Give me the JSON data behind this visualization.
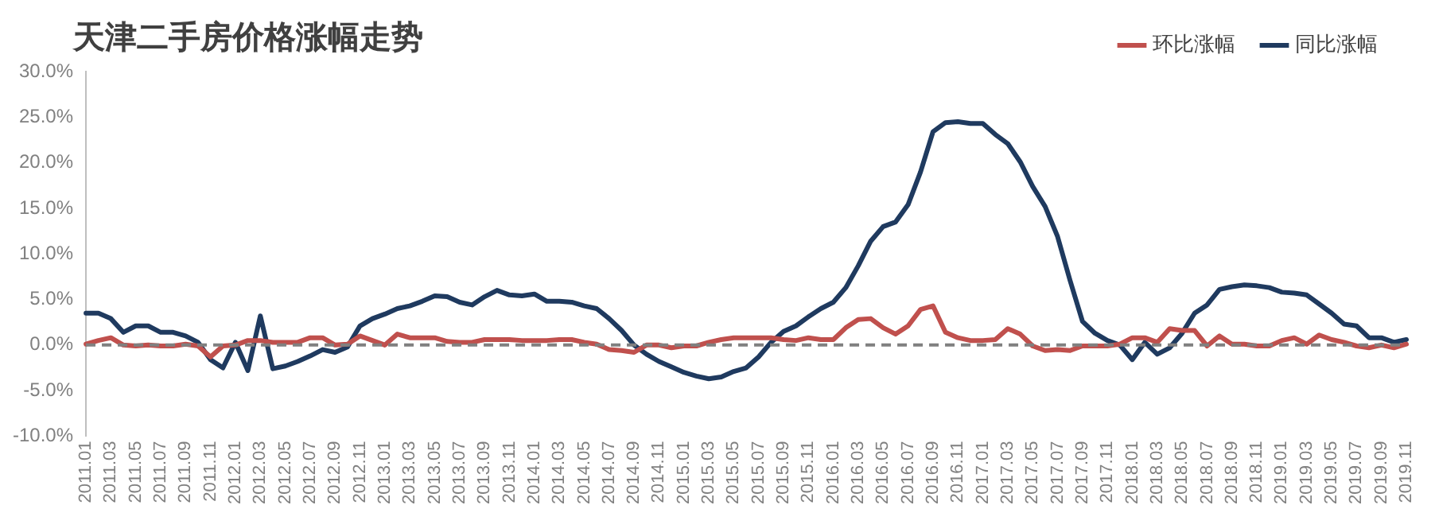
{
  "chart_data": {
    "type": "line",
    "title": "天津二手房价格涨幅走势",
    "categories": [
      "2011.01",
      null,
      "2011.03",
      null,
      "2011.05",
      null,
      "2011.07",
      null,
      "2011.09",
      null,
      "2011.11",
      null,
      "2012.01",
      null,
      "2012.03",
      null,
      "2012.05",
      null,
      "2012.07",
      null,
      "2012.09",
      null,
      "2012.11",
      null,
      "2013.01",
      null,
      "2013.03",
      null,
      "2013.05",
      null,
      "2013.07",
      null,
      "2013.09",
      null,
      "2013.11",
      null,
      "2014.01",
      null,
      "2014.03",
      null,
      "2014.05",
      null,
      "2014.07",
      null,
      "2014.09",
      null,
      "2014.11",
      null,
      "2015.01",
      null,
      "2015.03",
      null,
      "2015.05",
      null,
      "2015.07",
      null,
      "2015.09",
      null,
      "2015.11",
      null,
      "2016.01",
      null,
      "2016.03",
      null,
      "2016.05",
      null,
      "2016.07",
      null,
      "2016.09",
      null,
      "2016.11",
      null,
      "2017.01",
      null,
      "2017.03",
      null,
      "2017.05",
      null,
      "2017.07",
      null,
      "2017.09",
      null,
      "2017.11",
      null,
      "2018.01",
      null,
      "2018.03",
      null,
      "2018.05",
      null,
      "2018.07",
      null,
      "2018.09",
      null,
      "2018.11",
      null,
      "2019.01",
      null,
      "2019.03",
      null,
      "2019.05",
      null,
      "2019.07",
      null,
      "2019.09",
      null,
      "2019.11"
    ],
    "series": [
      {
        "name": "环比涨幅",
        "color": "#c0504d",
        "values": [
          0.1,
          0.5,
          0.8,
          0,
          -0.1,
          0,
          -0.1,
          -0.1,
          0.1,
          -0.1,
          -1.3,
          -0.1,
          0,
          0.5,
          0.5,
          0.3,
          0.3,
          0.3,
          0.8,
          0.8,
          0,
          0.1,
          1.0,
          0.5,
          0,
          1.2,
          0.8,
          0.8,
          0.8,
          0.4,
          0.3,
          0.3,
          0.6,
          0.6,
          0.6,
          0.5,
          0.5,
          0.5,
          0.6,
          0.6,
          0.3,
          0.1,
          -0.5,
          -0.6,
          -0.8,
          0,
          0,
          -0.3,
          -0.1,
          -0.1,
          0.3,
          0.6,
          0.8,
          0.8,
          0.8,
          0.8,
          0.6,
          0.5,
          0.8,
          0.6,
          0.6,
          1.9,
          2.8,
          2.9,
          1.9,
          1.2,
          2.1,
          3.9,
          4.3,
          1.4,
          0.8,
          0.5,
          0.5,
          0.6,
          1.8,
          1.2,
          -0.1,
          -0.6,
          -0.5,
          -0.6,
          -0.1,
          -0.1,
          -0.1,
          0.1,
          0.8,
          0.8,
          0.3,
          1.8,
          1.6,
          1.6,
          -0.1,
          1.0,
          0.1,
          0.1,
          -0.1,
          -0.1,
          0.5,
          0.8,
          0.1,
          1.1,
          0.6,
          0.3,
          -0.1,
          -0.3,
          0,
          -0.3,
          0.1
        ]
      },
      {
        "name": "同比涨幅",
        "color": "#1f3a5f",
        "values": [
          3.5,
          3.5,
          2.9,
          1.4,
          2.1,
          2.1,
          1.4,
          1.4,
          1.0,
          0.3,
          -1.6,
          -2.5,
          0.3,
          -2.8,
          3.2,
          -2.6,
          -2.3,
          -1.8,
          -1.2,
          -0.5,
          -0.8,
          -0.2,
          2.1,
          2.9,
          3.4,
          4.0,
          4.3,
          4.8,
          5.4,
          5.3,
          4.7,
          4.4,
          5.3,
          6.0,
          5.5,
          5.4,
          5.6,
          4.8,
          4.8,
          4.7,
          4.3,
          4.0,
          2.9,
          1.6,
          0,
          -1.0,
          -1.8,
          -2.4,
          -3.0,
          -3.4,
          -3.7,
          -3.5,
          -2.9,
          -2.5,
          -1.3,
          0.3,
          1.5,
          2.1,
          3.1,
          4.0,
          4.7,
          6.3,
          8.7,
          11.4,
          13.0,
          13.5,
          15.4,
          19.0,
          23.4,
          24.4,
          24.5,
          24.3,
          24.3,
          23.1,
          22.1,
          20.1,
          17.4,
          15.2,
          11.9,
          7.1,
          2.6,
          1.3,
          0.5,
          0,
          -1.6,
          0.3,
          -1.0,
          -0.3,
          1.3,
          3.5,
          4.4,
          6.1,
          6.4,
          6.6,
          6.5,
          6.3,
          5.8,
          5.7,
          5.5,
          4.5,
          3.5,
          2.3,
          2.1,
          0.8,
          0.8,
          0.3,
          0.6
        ]
      }
    ],
    "ylim": [
      -10,
      30
    ],
    "yticks": [
      {
        "value": -10,
        "label": "-10.0%"
      },
      {
        "value": -5,
        "label": "-5.0%"
      },
      {
        "value": 0,
        "label": "0.0%"
      },
      {
        "value": 5,
        "label": "5.0%"
      },
      {
        "value": 10,
        "label": "10.0%"
      },
      {
        "value": 15,
        "label": "15.0%"
      },
      {
        "value": 20,
        "label": "20.0%"
      },
      {
        "value": 25,
        "label": "25.0%"
      },
      {
        "value": 30,
        "label": "30.0%"
      }
    ],
    "ref_lines": [
      {
        "axis": "y",
        "value": 0,
        "color": "#808080",
        "line_style": "dashed"
      }
    ],
    "grid": false,
    "legend": "top right",
    "marker": "none",
    "line_style": "solid"
  }
}
